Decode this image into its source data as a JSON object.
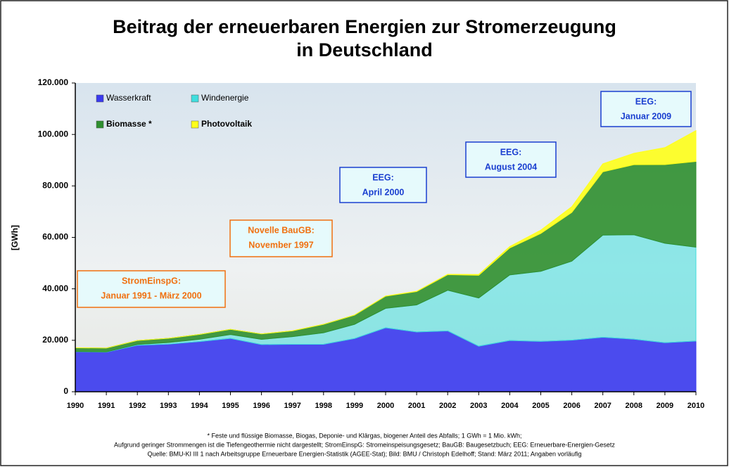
{
  "chart_data": {
    "type": "stacked-area",
    "title": [
      "Beitrag der erneuerbaren Energien zur Stromerzeugung",
      "in Deutschland"
    ],
    "y_label": "[GWh]",
    "categories": [
      "1990",
      "1991",
      "1992",
      "1993",
      "1994",
      "1995",
      "1996",
      "1997",
      "1998",
      "1999",
      "2000",
      "2001",
      "2002",
      "2003",
      "2004",
      "2005",
      "2006",
      "2007",
      "2008",
      "2009",
      "2010"
    ],
    "series": [
      {
        "name": "Wasserkraft",
        "color": "#3a3aee",
        "values": [
          15580,
          15402,
          18091,
          18526,
          19501,
          20747,
          18340,
          18453,
          18452,
          20686,
          24867,
          23241,
          23662,
          17722,
          19910,
          19576,
          20042,
          21169,
          20446,
          19059,
          19694
        ]
      },
      {
        "name": "Windenergie",
        "color": "#40dede",
        "values": [
          71,
          100,
          275,
          600,
          909,
          1500,
          2032,
          2966,
          4489,
          5528,
          7550,
          10509,
          15786,
          18713,
          25509,
          27229,
          30710,
          39713,
          40574,
          38639,
          36500
        ]
      },
      {
        "name": "Biomasse *",
        "color": "#2f8f2f",
        "values": [
          1435,
          1471,
          1558,
          1635,
          1875,
          2010,
          2098,
          2273,
          3256,
          3585,
          4731,
          5214,
          6048,
          8841,
          10471,
          14706,
          18934,
          24616,
          27238,
          30601,
          33300
        ]
      },
      {
        "name": "Photovoltaik",
        "color": "#ffff1a",
        "values": [
          1,
          2,
          3,
          6,
          8,
          11,
          16,
          26,
          32,
          42,
          64,
          76,
          162,
          313,
          556,
          1282,
          2220,
          3075,
          4420,
          6583,
          12000
        ]
      }
    ],
    "ylim": [
      0,
      120000
    ],
    "yticks": [
      0,
      {
        "value": 20000,
        "label": "20.000"
      },
      {
        "value": 40000,
        "label": "40.000"
      },
      {
        "value": 60000,
        "label": "60.000"
      },
      {
        "value": 80000,
        "label": "80.000"
      },
      {
        "value": 100000,
        "label": "100.000"
      },
      {
        "value": 120000,
        "label": "120.000"
      }
    ],
    "annotations": [
      {
        "lines": [
          "StromEinspG:",
          "Januar 1991 - März 2000"
        ],
        "color": "#f07010"
      },
      {
        "lines": [
          "Novelle BauGB:",
          "November 1997"
        ],
        "color": "#f07010"
      },
      {
        "lines": [
          "EEG:",
          "April 2000"
        ],
        "color": "#1a3fd0"
      },
      {
        "lines": [
          "EEG:",
          "August  2004"
        ],
        "color": "#1a3fd0"
      },
      {
        "lines": [
          "EEG:",
          "Januar 2009"
        ],
        "color": "#1a3fd0"
      }
    ],
    "footnotes": [
      "* Feste und flüssige Biomasse, Biogas, Deponie- und Klärgas, biogener Anteil des Abfalls; 1 GWh = 1 Mio. kWh;",
      "Aufgrund geringer Strommengen ist die Tiefengeothermie nicht dargestellt; StromEinspG: Stromeinspeisungsgesetz; BauGB: Baugesetzbuch; EEG: Erneuerbare-Energien-Gesetz",
      "Quelle: BMU-KI III 1 nach Arbeitsgruppe Erneuerbare Energien-Statistik (AGEE-Stat); Bild: BMU / Christoph Edelhoff; Stand: März 2011; Angaben vorläufig"
    ]
  }
}
